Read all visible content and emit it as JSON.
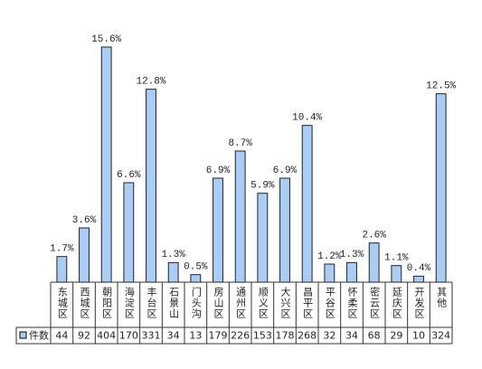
{
  "chart_data": {
    "type": "bar",
    "categories": [
      "东城区",
      "西城区",
      "朝阳区",
      "海淀区",
      "丰台区",
      "石景山",
      "门头沟",
      "房山区",
      "通州区",
      "顺义区",
      "大兴区",
      "昌平区",
      "平谷区",
      "怀柔区",
      "密云区",
      "延庆区",
      "开发区",
      "其他"
    ],
    "values": [
      1.7,
      3.6,
      15.6,
      6.6,
      12.8,
      1.3,
      0.5,
      6.9,
      8.7,
      5.9,
      6.9,
      10.4,
      1.2,
      1.3,
      2.6,
      1.1,
      0.4,
      12.5
    ],
    "value_labels": [
      "1.7%",
      "3.6%",
      "15.6%",
      "6.6%",
      "12.8%",
      "1.3%",
      "0.5%",
      "6.9%",
      "8.7%",
      "5.9%",
      "6.9%",
      "10.4%",
      "1.2%",
      "1.3%",
      "2.6%",
      "1.1%",
      "0.4%",
      "12.5%"
    ],
    "color": "#a9cdf5",
    "table": {
      "label": "件数",
      "values": [
        44,
        92,
        404,
        170,
        331,
        34,
        13,
        179,
        226,
        153,
        178,
        268,
        32,
        34,
        68,
        29,
        10,
        324
      ]
    }
  }
}
